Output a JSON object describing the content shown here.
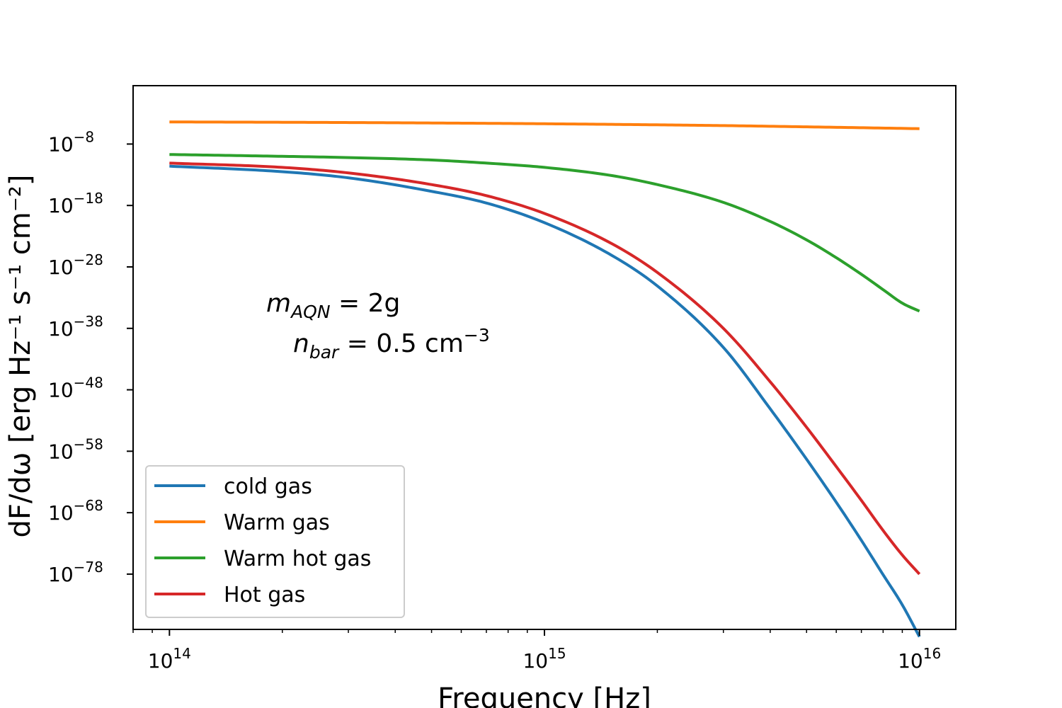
{
  "chart_data": {
    "type": "line",
    "title": "",
    "xlabel": "Frequency [Hz]",
    "ylabel": "dF/dω [erg Hz⁻¹ s⁻¹ cm⁻²]",
    "x_scale": "log",
    "y_scale": "log",
    "xlim": [
      80000000000000.0,
      1.25e+16
    ],
    "ylim_log10": [
      -87,
      1.5
    ],
    "x_ticks": [
      {
        "value": 100000000000000.0,
        "base": "10",
        "exp": "14"
      },
      {
        "value": 1000000000000000.0,
        "base": "10",
        "exp": "15"
      },
      {
        "value": 1e+16,
        "base": "10",
        "exp": "16"
      }
    ],
    "y_ticks": [
      {
        "log10": -8,
        "base": "10",
        "exp": "−8"
      },
      {
        "log10": -18,
        "base": "10",
        "exp": "−18"
      },
      {
        "log10": -28,
        "base": "10",
        "exp": "−28"
      },
      {
        "log10": -38,
        "base": "10",
        "exp": "−38"
      },
      {
        "log10": -48,
        "base": "10",
        "exp": "−48"
      },
      {
        "log10": -58,
        "base": "10",
        "exp": "−58"
      },
      {
        "log10": -68,
        "base": "10",
        "exp": "−68"
      },
      {
        "log10": -78,
        "base": "10",
        "exp": "−78"
      }
    ],
    "grid": false,
    "legend_position": "lower-left",
    "annotations": [
      {
        "main": "m",
        "sub": "AQN",
        "rest": " = 2g"
      },
      {
        "main": "n",
        "sub": "bar",
        "rest": " = 0.5 cm",
        "sup": "−3"
      }
    ],
    "series": [
      {
        "name": "cold gas",
        "color": "#1f77b4",
        "x": [
          100000000000000.0,
          200000000000000.0,
          300000000000000.0,
          500000000000000.0,
          700000000000000.0,
          1000000000000000.0,
          1500000000000000.0,
          2000000000000000.0,
          3000000000000000.0,
          4000000000000000.0,
          5000000000000000.0,
          6000000000000000.0,
          7000000000000000.0,
          8000000000000000.0,
          9000000000000000.0,
          1e+16
        ],
        "log10_y": [
          -11.6,
          -12.5,
          -13.5,
          -15.7,
          -17.6,
          -20.8,
          -26.0,
          -31.1,
          -41.1,
          -51.1,
          -59.3,
          -66.3,
          -72.5,
          -78.1,
          -83.0,
          -88.2
        ]
      },
      {
        "name": "Warm gas",
        "color": "#ff7f0e",
        "x": [
          100000000000000.0,
          300000000000000.0,
          1000000000000000.0,
          3000000000000000.0,
          5000000000000000.0,
          1e+16
        ],
        "log10_y": [
          -4.4,
          -4.5,
          -4.7,
          -5.0,
          -5.2,
          -5.5
        ]
      },
      {
        "name": "Warm hot gas",
        "color": "#2ca02c",
        "x": [
          100000000000000.0,
          200000000000000.0,
          300000000000000.0,
          500000000000000.0,
          700000000000000.0,
          1000000000000000.0,
          1500000000000000.0,
          2000000000000000.0,
          3000000000000000.0,
          4000000000000000.0,
          5000000000000000.0,
          6000000000000000.0,
          7000000000000000.0,
          8000000000000000.0,
          9000000000000000.0,
          1e+16
        ],
        "log10_y": [
          -9.7,
          -10.0,
          -10.2,
          -10.6,
          -11.1,
          -11.8,
          -13.1,
          -14.6,
          -17.5,
          -20.6,
          -23.6,
          -26.5,
          -29.2,
          -31.7,
          -33.9,
          -35.2
        ]
      },
      {
        "name": "Hot gas",
        "color": "#d62728",
        "x": [
          100000000000000.0,
          200000000000000.0,
          300000000000000.0,
          500000000000000.0,
          700000000000000.0,
          1000000000000000.0,
          1500000000000000.0,
          2000000000000000.0,
          3000000000000000.0,
          4000000000000000.0,
          5000000000000000.0,
          6000000000000000.0,
          7000000000000000.0,
          8000000000000000.0,
          9000000000000000.0,
          1e+16
        ],
        "log10_y": [
          -11.1,
          -11.8,
          -12.7,
          -14.6,
          -16.4,
          -19.3,
          -24.1,
          -28.9,
          -38.0,
          -46.7,
          -54.1,
          -60.5,
          -66.0,
          -70.9,
          -74.9,
          -78.0
        ]
      }
    ]
  }
}
